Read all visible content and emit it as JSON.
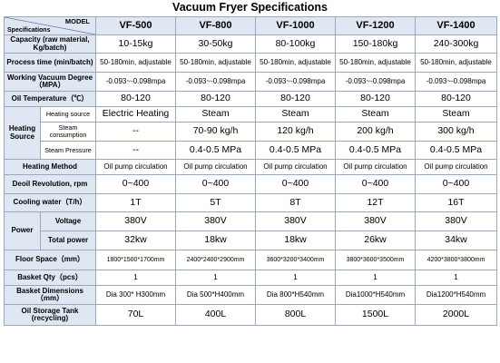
{
  "title": "Vacuum Fryer Specifications",
  "header": {
    "model_label": "MODEL",
    "spec_label": "Specifications",
    "models": [
      "VF-500",
      "VF-800",
      "VF-1000",
      "VF-1200",
      "VF-1400"
    ]
  },
  "rows": {
    "capacity": {
      "label": "Capacity (raw material, Kg/batch)",
      "values": [
        "10-15kg",
        "30-50kg",
        "80-100kg",
        "150-180kg",
        "240-300kg"
      ]
    },
    "process_time": {
      "label": "Process time (min/batch)",
      "values": [
        "50-180min, adjustable",
        "50-180min, adjustable",
        "50-180min, adjustable",
        "50-180min, adjustable",
        "50-180min, adjustable"
      ]
    },
    "vacuum": {
      "label": "Working Vacuum Degree（MPA）",
      "values": [
        "-0.093~-0.098mpa",
        "-0.093~-0.098mpa",
        "-0.093~-0.098mpa",
        "-0.093~-0.098mpa",
        "-0.093~-0.098mpa"
      ]
    },
    "oil_temp": {
      "label": "Oil Temperature（℃）",
      "values": [
        "80-120",
        "80-120",
        "80-120",
        "80-120",
        "80-120"
      ]
    },
    "heating": {
      "label": "Heating Source",
      "source": {
        "label": "Heating source",
        "values": [
          "Electric Heating",
          "Steam",
          "Steam",
          "Steam",
          "Steam"
        ]
      },
      "consumption": {
        "label": "Steam consumption",
        "values": [
          "--",
          "70-90 kg/h",
          "120 kg/h",
          "200 kg/h",
          "300 kg/h"
        ]
      },
      "pressure": {
        "label": "Steam Pressure",
        "values": [
          "--",
          "0.4-0.5 MPa",
          "0.4-0.5 MPa",
          "0.4-0.5 MPa",
          "0.4-0.5 MPa"
        ]
      }
    },
    "heating_method": {
      "label": "Heating Method",
      "values": [
        "Oil pump circulation",
        "Oil pump circulation",
        "Oil pump circulation",
        "Oil pump circulation",
        "Oil pump circulation"
      ]
    },
    "deoil": {
      "label": "Deoil Revolution, rpm",
      "values": [
        "0~400",
        "0~400",
        "0~400",
        "0~400",
        "0~400"
      ]
    },
    "cooling": {
      "label": "Cooling water（T/h）",
      "values": [
        "1T",
        "5T",
        "8T",
        "12T",
        "16T"
      ]
    },
    "power": {
      "label": "Power",
      "voltage": {
        "label": "Voltage",
        "values": [
          "380V",
          "380V",
          "380V",
          "380V",
          "380V"
        ]
      },
      "total": {
        "label": "Total power",
        "values": [
          "32kw",
          "18kw",
          "18kw",
          "26kw",
          "34kw"
        ]
      }
    },
    "floor_space": {
      "label": "Floor Space（mm）",
      "values": [
        "1800*1500*1700mm",
        "2400*2400*2900mm",
        "3600*3200*3400mm",
        "3800*3600*3500mm",
        "4200*3800*3800mm"
      ]
    },
    "basket_qty": {
      "label": "Basket Qty（pcs）",
      "values": [
        "1",
        "1",
        "1",
        "1",
        "1"
      ]
    },
    "basket_dim": {
      "label": "Basket Dimensions（mm）",
      "values": [
        "Dia 300* H300mm",
        "Dia 500*H400mm",
        "Dia 800*H540mm",
        "Dia1000*H540mm",
        "Dia1200*H540mm"
      ]
    },
    "oil_tank": {
      "label": "Oil Storage Tank (recycling)",
      "values": [
        "70L",
        "400L",
        "800L",
        "1500L",
        "2000L"
      ]
    }
  }
}
